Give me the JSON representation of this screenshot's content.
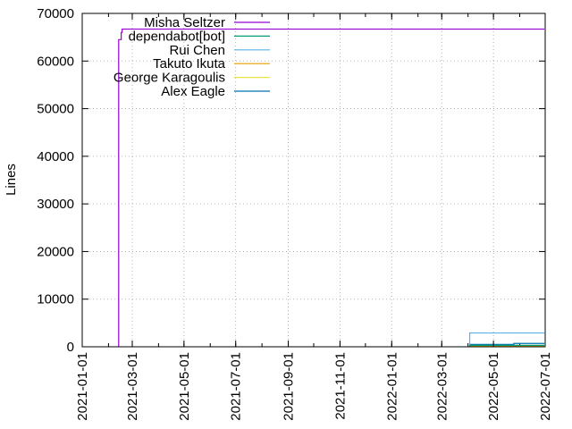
{
  "chart_data": {
    "type": "line",
    "title": "",
    "xlabel": "",
    "ylabel": "Lines",
    "x_type": "date",
    "xlim": [
      "2021-01-01",
      "2022-07-01"
    ],
    "ylim": [
      0,
      70000
    ],
    "y_ticks": [
      0,
      10000,
      20000,
      30000,
      40000,
      50000,
      60000,
      70000
    ],
    "y_tick_labels": [
      "0",
      "10000",
      "20000",
      "30000",
      "40000",
      "50000",
      "60000",
      "70000"
    ],
    "x_ticks": [
      "2021-01-01",
      "2021-03-01",
      "2021-05-01",
      "2021-07-01",
      "2021-09-01",
      "2021-11-01",
      "2022-01-01",
      "2022-03-01",
      "2022-05-01",
      "2022-07-01"
    ],
    "x_tick_labels": [
      "2021-01-01",
      "2021-03-01",
      "2021-05-01",
      "2021-07-01",
      "2021-09-01",
      "2021-11-01",
      "2022-01-01",
      "2022-03-01",
      "2022-05-01",
      "2022-07-01"
    ],
    "grid": true,
    "legend_position": "top-left",
    "series": [
      {
        "name": "Misha Seltzer",
        "color": "#9400d3",
        "points": [
          {
            "x": "2021-02-13",
            "y": 0
          },
          {
            "x": "2021-02-13",
            "y": 64500
          },
          {
            "x": "2021-02-16",
            "y": 64500
          },
          {
            "x": "2021-02-16",
            "y": 66000
          },
          {
            "x": "2021-02-17",
            "y": 66000
          },
          {
            "x": "2021-02-17",
            "y": 66700
          },
          {
            "x": "2022-06-30",
            "y": 66700
          }
        ]
      },
      {
        "name": "dependabot[bot]",
        "color": "#009e73",
        "points": [
          {
            "x": "2022-04-03",
            "y": 0
          },
          {
            "x": "2022-04-03",
            "y": 300
          },
          {
            "x": "2022-06-30",
            "y": 300
          }
        ]
      },
      {
        "name": "Rui Chen",
        "color": "#56b4e9",
        "points": [
          {
            "x": "2022-04-03",
            "y": 0
          },
          {
            "x": "2022-04-03",
            "y": 2900
          },
          {
            "x": "2022-06-30",
            "y": 2900
          }
        ]
      },
      {
        "name": "Takuto Ikuta",
        "color": "#e69f00",
        "points": [
          {
            "x": "2022-04-03",
            "y": 0
          },
          {
            "x": "2022-04-03",
            "y": 150
          },
          {
            "x": "2022-06-30",
            "y": 150
          }
        ]
      },
      {
        "name": "George Karagoulis",
        "color": "#f0e442",
        "points": [
          {
            "x": "2022-04-03",
            "y": 0
          },
          {
            "x": "2022-04-03",
            "y": 100
          },
          {
            "x": "2022-06-30",
            "y": 100
          }
        ]
      },
      {
        "name": "Alex Eagle",
        "color": "#0072b2",
        "points": [
          {
            "x": "2022-04-03",
            "y": 0
          },
          {
            "x": "2022-04-03",
            "y": 500
          },
          {
            "x": "2022-05-25",
            "y": 500
          },
          {
            "x": "2022-05-25",
            "y": 700
          },
          {
            "x": "2022-06-30",
            "y": 700
          }
        ]
      }
    ]
  }
}
